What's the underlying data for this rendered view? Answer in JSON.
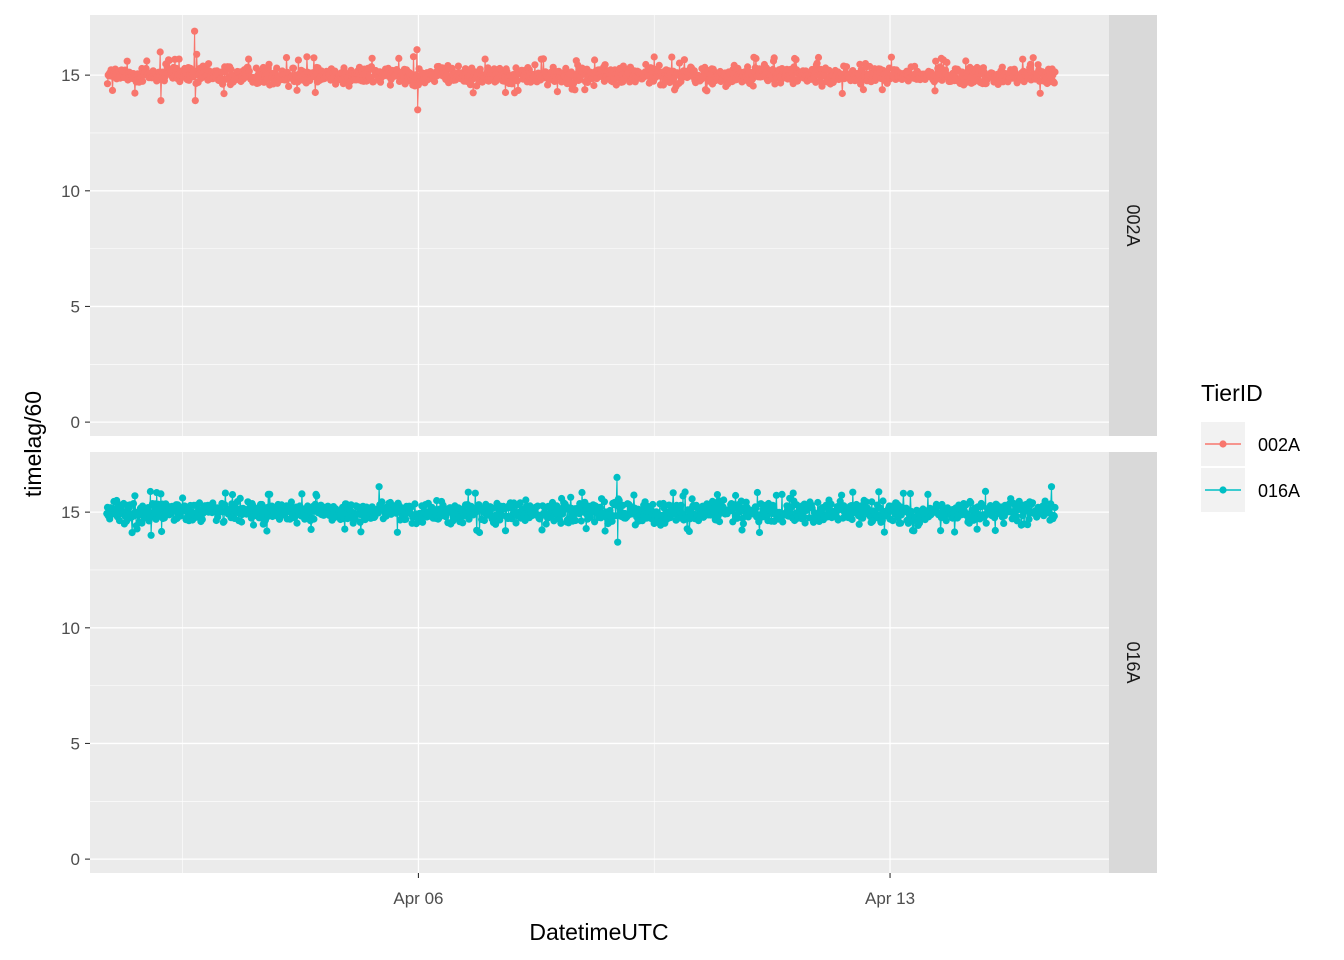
{
  "chart_data": {
    "type": "line",
    "facet_by": "TierID",
    "facet_strip_position": "right",
    "xlabel": "DatetimeUTC",
    "ylabel": "timelag/60",
    "x_ticks": [
      "Apr 06",
      "Apr 13"
    ],
    "x_range": [
      "2023-04-01T03:00",
      "2023-04-16T06:00"
    ],
    "ylim": [
      -0.6,
      17.6
    ],
    "y_ticks": [
      0,
      5,
      10,
      15
    ],
    "grid": true,
    "legend": {
      "title": "TierID",
      "position": "right"
    },
    "series": [
      {
        "name": "002A",
        "color": "#F8766D",
        "x_start": "2023-04-01T09:15",
        "x_end": "2023-04-15T10:45",
        "sample_interval_minutes": 15,
        "typical_value": 15.0,
        "typical_spread": [
          14.4,
          15.6
        ],
        "spikes": [
          {
            "x": "2023-04-02T04:00",
            "y": 16.0
          },
          {
            "x": "2023-04-02T04:15",
            "y": 13.9
          },
          {
            "x": "2023-04-02T16:15",
            "y": 16.9
          },
          {
            "x": "2023-04-02T16:30",
            "y": 13.9
          },
          {
            "x": "2023-04-02T17:00",
            "y": 15.9
          },
          {
            "x": "2023-04-05T23:30",
            "y": 16.1
          },
          {
            "x": "2023-04-05T23:45",
            "y": 13.5
          }
        ]
      },
      {
        "name": "016A",
        "color": "#00BFC4",
        "x_start": "2023-04-01T09:00",
        "x_end": "2023-04-15T10:45",
        "sample_interval_minutes": 15,
        "typical_value": 15.0,
        "typical_spread": [
          14.3,
          15.7
        ],
        "spikes": [
          {
            "x": "2023-04-02T00:45",
            "y": 14.0
          },
          {
            "x": "2023-04-05T10:00",
            "y": 16.1
          },
          {
            "x": "2023-04-08T22:45",
            "y": 16.5
          },
          {
            "x": "2023-04-08T23:00",
            "y": 13.7
          },
          {
            "x": "2023-04-15T09:30",
            "y": 16.1
          }
        ]
      }
    ],
    "panels": [
      {
        "strip_label": "002A",
        "series": "002A"
      },
      {
        "strip_label": "016A",
        "series": "016A"
      }
    ]
  }
}
